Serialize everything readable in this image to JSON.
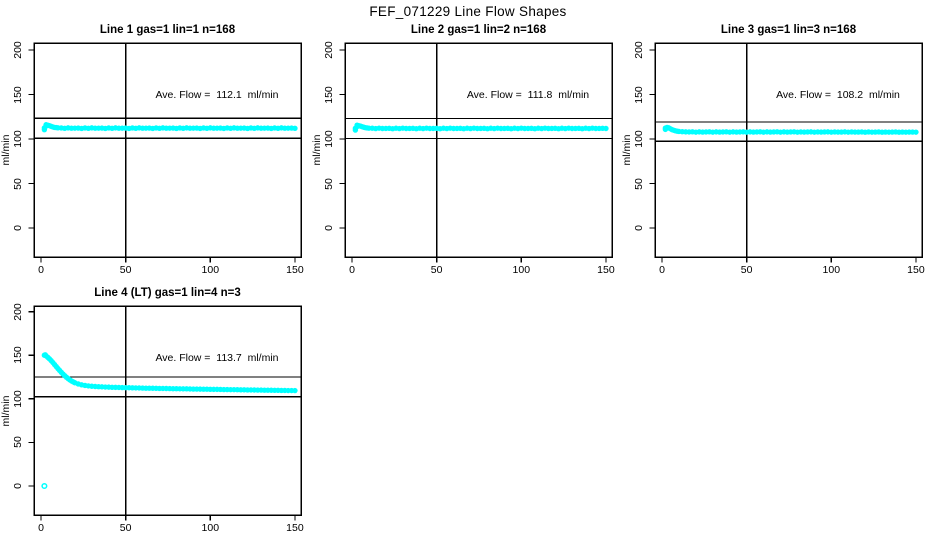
{
  "page_title": "FEF_071229  Line Flow Shapes",
  "colors": {
    "point": "#00FFFF",
    "axis": "#000000",
    "background": "#FFFFFF"
  },
  "chart_data": [
    {
      "type": "scatter",
      "title": "Line 1 gas=1 lin=1 n=168",
      "annotation": "Ave. Flow =  112.1  ml/min",
      "ave_flow_ml_min": 112.1,
      "line": 1,
      "gas": 1,
      "lin": 1,
      "n": 168,
      "xlabel": "",
      "ylabel": "ml/min",
      "xlim": [
        0,
        150
      ],
      "ylim": [
        0,
        200
      ],
      "xticks": [
        0,
        50,
        100,
        150
      ],
      "yticks": [
        0,
        50,
        100,
        150,
        200
      ],
      "grid": false,
      "ref_hlines": [
        100.9,
        123.3
      ],
      "ref_vlines": [
        50
      ],
      "points": [
        [
          2,
          110.5
        ],
        [
          2,
          112.5
        ],
        [
          3,
          114.5
        ],
        [
          3,
          116
        ],
        [
          4,
          115.5
        ],
        [
          5,
          115
        ],
        [
          6,
          114.2
        ],
        [
          7,
          113.5
        ],
        [
          8,
          113
        ],
        [
          9,
          112.8
        ],
        [
          10,
          112.6
        ],
        [
          12,
          112.4
        ],
        [
          14,
          112
        ],
        [
          16,
          112.5
        ],
        [
          18,
          112.1
        ],
        [
          20,
          112.2
        ],
        [
          22,
          112.3
        ],
        [
          24,
          111.9
        ],
        [
          26,
          112.4
        ],
        [
          28,
          112
        ],
        [
          30,
          112.5
        ],
        [
          32,
          112.1
        ],
        [
          34,
          112.2
        ],
        [
          36,
          112.3
        ],
        [
          38,
          111.9
        ],
        [
          40,
          112.4
        ],
        [
          42,
          112
        ],
        [
          44,
          112.5
        ],
        [
          46,
          112.1
        ],
        [
          48,
          112.2
        ],
        [
          50,
          112.3
        ],
        [
          52,
          111.9
        ],
        [
          54,
          112.4
        ],
        [
          56,
          112
        ],
        [
          58,
          112.5
        ],
        [
          60,
          112.1
        ],
        [
          62,
          112.2
        ],
        [
          64,
          112.3
        ],
        [
          66,
          111.9
        ],
        [
          68,
          112.4
        ],
        [
          70,
          112
        ],
        [
          72,
          112.5
        ],
        [
          74,
          112.1
        ],
        [
          76,
          112.2
        ],
        [
          78,
          112.3
        ],
        [
          80,
          111.9
        ],
        [
          82,
          112.4
        ],
        [
          84,
          112
        ],
        [
          86,
          112.5
        ],
        [
          88,
          112.1
        ],
        [
          90,
          112.2
        ],
        [
          92,
          112.3
        ],
        [
          94,
          111.9
        ],
        [
          96,
          112.4
        ],
        [
          98,
          112
        ],
        [
          100,
          112.5
        ],
        [
          102,
          112.1
        ],
        [
          104,
          112.2
        ],
        [
          106,
          112.3
        ],
        [
          108,
          111.9
        ],
        [
          110,
          112.4
        ],
        [
          112,
          112
        ],
        [
          114,
          112.5
        ],
        [
          116,
          112.1
        ],
        [
          118,
          112.2
        ],
        [
          120,
          112.3
        ],
        [
          122,
          111.9
        ],
        [
          124,
          112.4
        ],
        [
          126,
          112
        ],
        [
          128,
          112.5
        ],
        [
          130,
          112.1
        ],
        [
          132,
          112.2
        ],
        [
          134,
          112.3
        ],
        [
          136,
          111.9
        ],
        [
          138,
          112.4
        ],
        [
          140,
          112
        ],
        [
          142,
          112.5
        ],
        [
          144,
          112.1
        ],
        [
          146,
          112.2
        ],
        [
          148,
          112.3
        ],
        [
          150,
          112
        ]
      ],
      "outlier_points": []
    },
    {
      "type": "scatter",
      "title": "Line 2 gas=1 lin=2 n=168",
      "annotation": "Ave. Flow =  111.8  ml/min",
      "ave_flow_ml_min": 111.8,
      "line": 2,
      "gas": 1,
      "lin": 2,
      "n": 168,
      "xlabel": "",
      "ylabel": "ml/min",
      "xlim": [
        0,
        150
      ],
      "ylim": [
        0,
        200
      ],
      "xticks": [
        0,
        50,
        100,
        150
      ],
      "yticks": [
        0,
        50,
        100,
        150,
        200
      ],
      "grid": false,
      "ref_hlines": [
        100.6,
        123.0
      ],
      "ref_vlines": [
        50
      ],
      "points": [
        [
          2,
          110
        ],
        [
          2,
          112
        ],
        [
          3,
          114
        ],
        [
          3,
          115.5
        ],
        [
          4,
          115
        ],
        [
          5,
          114.5
        ],
        [
          6,
          113.8
        ],
        [
          7,
          113.2
        ],
        [
          8,
          112.7
        ],
        [
          9,
          112.4
        ],
        [
          10,
          112.2
        ],
        [
          12,
          112.1
        ],
        [
          14,
          111.7
        ],
        [
          16,
          112.2
        ],
        [
          18,
          111.8
        ],
        [
          20,
          111.9
        ],
        [
          22,
          112
        ],
        [
          24,
          111.6
        ],
        [
          26,
          112.1
        ],
        [
          28,
          111.7
        ],
        [
          30,
          112.2
        ],
        [
          32,
          111.8
        ],
        [
          34,
          111.9
        ],
        [
          36,
          112
        ],
        [
          38,
          111.6
        ],
        [
          40,
          112.1
        ],
        [
          42,
          111.7
        ],
        [
          44,
          112.2
        ],
        [
          46,
          111.8
        ],
        [
          48,
          111.9
        ],
        [
          50,
          112
        ],
        [
          52,
          111.6
        ],
        [
          54,
          112.1
        ],
        [
          56,
          111.7
        ],
        [
          58,
          112.2
        ],
        [
          60,
          111.8
        ],
        [
          62,
          111.9
        ],
        [
          64,
          112
        ],
        [
          66,
          111.6
        ],
        [
          68,
          112.1
        ],
        [
          70,
          111.7
        ],
        [
          72,
          112.2
        ],
        [
          74,
          111.8
        ],
        [
          76,
          111.9
        ],
        [
          78,
          112
        ],
        [
          80,
          111.6
        ],
        [
          82,
          112.1
        ],
        [
          84,
          111.7
        ],
        [
          86,
          112.2
        ],
        [
          88,
          111.8
        ],
        [
          90,
          111.9
        ],
        [
          92,
          112
        ],
        [
          94,
          111.6
        ],
        [
          96,
          112.1
        ],
        [
          98,
          111.7
        ],
        [
          100,
          112.2
        ],
        [
          102,
          111.8
        ],
        [
          104,
          111.9
        ],
        [
          106,
          112
        ],
        [
          108,
          111.6
        ],
        [
          110,
          112.1
        ],
        [
          112,
          111.7
        ],
        [
          114,
          112.2
        ],
        [
          116,
          111.8
        ],
        [
          118,
          111.9
        ],
        [
          120,
          112
        ],
        [
          122,
          111.6
        ],
        [
          124,
          112.1
        ],
        [
          126,
          111.7
        ],
        [
          128,
          112.2
        ],
        [
          130,
          111.8
        ],
        [
          132,
          111.9
        ],
        [
          134,
          112
        ],
        [
          136,
          111.6
        ],
        [
          138,
          112.1
        ],
        [
          140,
          111.7
        ],
        [
          142,
          112.2
        ],
        [
          144,
          111.8
        ],
        [
          146,
          111.9
        ],
        [
          148,
          112
        ],
        [
          150,
          111.8
        ]
      ],
      "outlier_points": []
    },
    {
      "type": "scatter",
      "title": "Line 3 gas=1 lin=3 n=168",
      "annotation": "Ave. Flow =  108.2  ml/min",
      "ave_flow_ml_min": 108.2,
      "line": 3,
      "gas": 1,
      "lin": 3,
      "n": 168,
      "xlabel": "",
      "ylabel": "ml/min",
      "xlim": [
        0,
        150
      ],
      "ylim": [
        0,
        200
      ],
      "xticks": [
        0,
        50,
        100,
        150
      ],
      "yticks": [
        0,
        50,
        100,
        150,
        200
      ],
      "grid": false,
      "ref_hlines": [
        97.4,
        119.0
      ],
      "ref_vlines": [
        50
      ],
      "points": [
        [
          2,
          110.8
        ],
        [
          2,
          112.3
        ],
        [
          3,
          113
        ],
        [
          4,
          112.5
        ],
        [
          5,
          111.5
        ],
        [
          6,
          110.5
        ],
        [
          7,
          109.8
        ],
        [
          8,
          109.2
        ],
        [
          9,
          108.8
        ],
        [
          10,
          108.5
        ],
        [
          12,
          108.2
        ],
        [
          14,
          108
        ],
        [
          16,
          107.9
        ],
        [
          18,
          108.1
        ],
        [
          20,
          107.7
        ],
        [
          22,
          108
        ],
        [
          24,
          107.8
        ],
        [
          26,
          107.9
        ],
        [
          28,
          108.1
        ],
        [
          30,
          107.7
        ],
        [
          32,
          108
        ],
        [
          34,
          107.8
        ],
        [
          36,
          107.9
        ],
        [
          38,
          108.1
        ],
        [
          40,
          107.7
        ],
        [
          42,
          108
        ],
        [
          44,
          107.8
        ],
        [
          46,
          107.9
        ],
        [
          48,
          108.1
        ],
        [
          50,
          107.7
        ],
        [
          52,
          108
        ],
        [
          54,
          107.8
        ],
        [
          56,
          107.9
        ],
        [
          58,
          108.1
        ],
        [
          60,
          107.7
        ],
        [
          62,
          108
        ],
        [
          64,
          107.8
        ],
        [
          66,
          107.9
        ],
        [
          68,
          108.1
        ],
        [
          70,
          107.7
        ],
        [
          72,
          108
        ],
        [
          74,
          107.8
        ],
        [
          76,
          107.9
        ],
        [
          78,
          108.1
        ],
        [
          80,
          107.7
        ],
        [
          82,
          107.9
        ],
        [
          84,
          107.8
        ],
        [
          86,
          107.9
        ],
        [
          88,
          108
        ],
        [
          90,
          107.7
        ],
        [
          92,
          107.9
        ],
        [
          94,
          107.8
        ],
        [
          96,
          107.9
        ],
        [
          98,
          108
        ],
        [
          100,
          107.7
        ],
        [
          102,
          107.9
        ],
        [
          104,
          107.8
        ],
        [
          106,
          107.8
        ],
        [
          108,
          108
        ],
        [
          110,
          107.7
        ],
        [
          112,
          107.9
        ],
        [
          114,
          107.8
        ],
        [
          116,
          107.8
        ],
        [
          118,
          107.9
        ],
        [
          120,
          107.6
        ],
        [
          122,
          107.9
        ],
        [
          124,
          107.7
        ],
        [
          126,
          107.8
        ],
        [
          128,
          107.9
        ],
        [
          130,
          107.6
        ],
        [
          132,
          107.8
        ],
        [
          134,
          107.7
        ],
        [
          136,
          107.8
        ],
        [
          138,
          107.9
        ],
        [
          140,
          107.6
        ],
        [
          142,
          107.8
        ],
        [
          144,
          107.7
        ],
        [
          146,
          107.8
        ],
        [
          148,
          107.8
        ],
        [
          150,
          107.7
        ]
      ],
      "outlier_points": []
    },
    {
      "type": "scatter",
      "title": "Line 4 (LT) gas=1 lin=4 n=3",
      "annotation": "Ave. Flow =  113.7  ml/min",
      "ave_flow_ml_min": 113.7,
      "line": 4,
      "gas": 1,
      "lin": 4,
      "n": 3,
      "xlabel": "",
      "ylabel": "ml/min",
      "xlim": [
        0,
        150
      ],
      "ylim": [
        0,
        200
      ],
      "xticks": [
        0,
        50,
        100,
        150
      ],
      "yticks": [
        0,
        50,
        100,
        150,
        200
      ],
      "grid": false,
      "ref_hlines": [
        102.3,
        125.1
      ],
      "ref_vlines": [
        50
      ],
      "points": [
        [
          2,
          150
        ],
        [
          2.5,
          150.5
        ],
        [
          3,
          149.2
        ],
        [
          4,
          147.6
        ],
        [
          5,
          145.8
        ],
        [
          6,
          143.8
        ],
        [
          7,
          141.6
        ],
        [
          8,
          139.3
        ],
        [
          9,
          137
        ],
        [
          10,
          134.7
        ],
        [
          11,
          132.5
        ],
        [
          12,
          130.4
        ],
        [
          13,
          128.4
        ],
        [
          14,
          126.5
        ],
        [
          15,
          124.8
        ],
        [
          16,
          123.2
        ],
        [
          17,
          121.8
        ],
        [
          18,
          120.5
        ],
        [
          19,
          119.4
        ],
        [
          20,
          118.4
        ],
        [
          22,
          117
        ],
        [
          24,
          116
        ],
        [
          26,
          115.3
        ],
        [
          28,
          114.8
        ],
        [
          30,
          114.4
        ],
        [
          32,
          114.1
        ],
        [
          34,
          113.9
        ],
        [
          36,
          113.7
        ],
        [
          38,
          113.5
        ],
        [
          40,
          113.4
        ],
        [
          42,
          113.2
        ],
        [
          44,
          113.1
        ],
        [
          46,
          113
        ],
        [
          48,
          112.9
        ],
        [
          50,
          112.8
        ],
        [
          52,
          112.7
        ],
        [
          54,
          112.6
        ],
        [
          56,
          112.5
        ],
        [
          58,
          112.4
        ],
        [
          60,
          112.3
        ],
        [
          62,
          112.2
        ],
        [
          64,
          112.2
        ],
        [
          66,
          112.1
        ],
        [
          68,
          112
        ],
        [
          70,
          111.9
        ],
        [
          72,
          111.9
        ],
        [
          74,
          111.8
        ],
        [
          76,
          111.7
        ],
        [
          78,
          111.6
        ],
        [
          80,
          111.6
        ],
        [
          82,
          111.5
        ],
        [
          84,
          111.4
        ],
        [
          86,
          111.4
        ],
        [
          88,
          111.3
        ],
        [
          90,
          111.2
        ],
        [
          92,
          111.2
        ],
        [
          94,
          111.1
        ],
        [
          96,
          111
        ],
        [
          98,
          111
        ],
        [
          100,
          110.9
        ],
        [
          102,
          110.8
        ],
        [
          104,
          110.8
        ],
        [
          106,
          110.7
        ],
        [
          108,
          110.6
        ],
        [
          110,
          110.6
        ],
        [
          112,
          110.5
        ],
        [
          114,
          110.5
        ],
        [
          116,
          110.4
        ],
        [
          118,
          110.3
        ],
        [
          120,
          110.3
        ],
        [
          122,
          110.2
        ],
        [
          124,
          110.2
        ],
        [
          126,
          110.1
        ],
        [
          128,
          110
        ],
        [
          130,
          110
        ],
        [
          132,
          109.9
        ],
        [
          134,
          109.9
        ],
        [
          136,
          109.8
        ],
        [
          138,
          109.7
        ],
        [
          140,
          109.7
        ],
        [
          142,
          109.6
        ],
        [
          144,
          109.6
        ],
        [
          146,
          109.5
        ],
        [
          148,
          109.5
        ],
        [
          150,
          109.4
        ]
      ],
      "outlier_points": [
        [
          2,
          0
        ]
      ]
    }
  ]
}
